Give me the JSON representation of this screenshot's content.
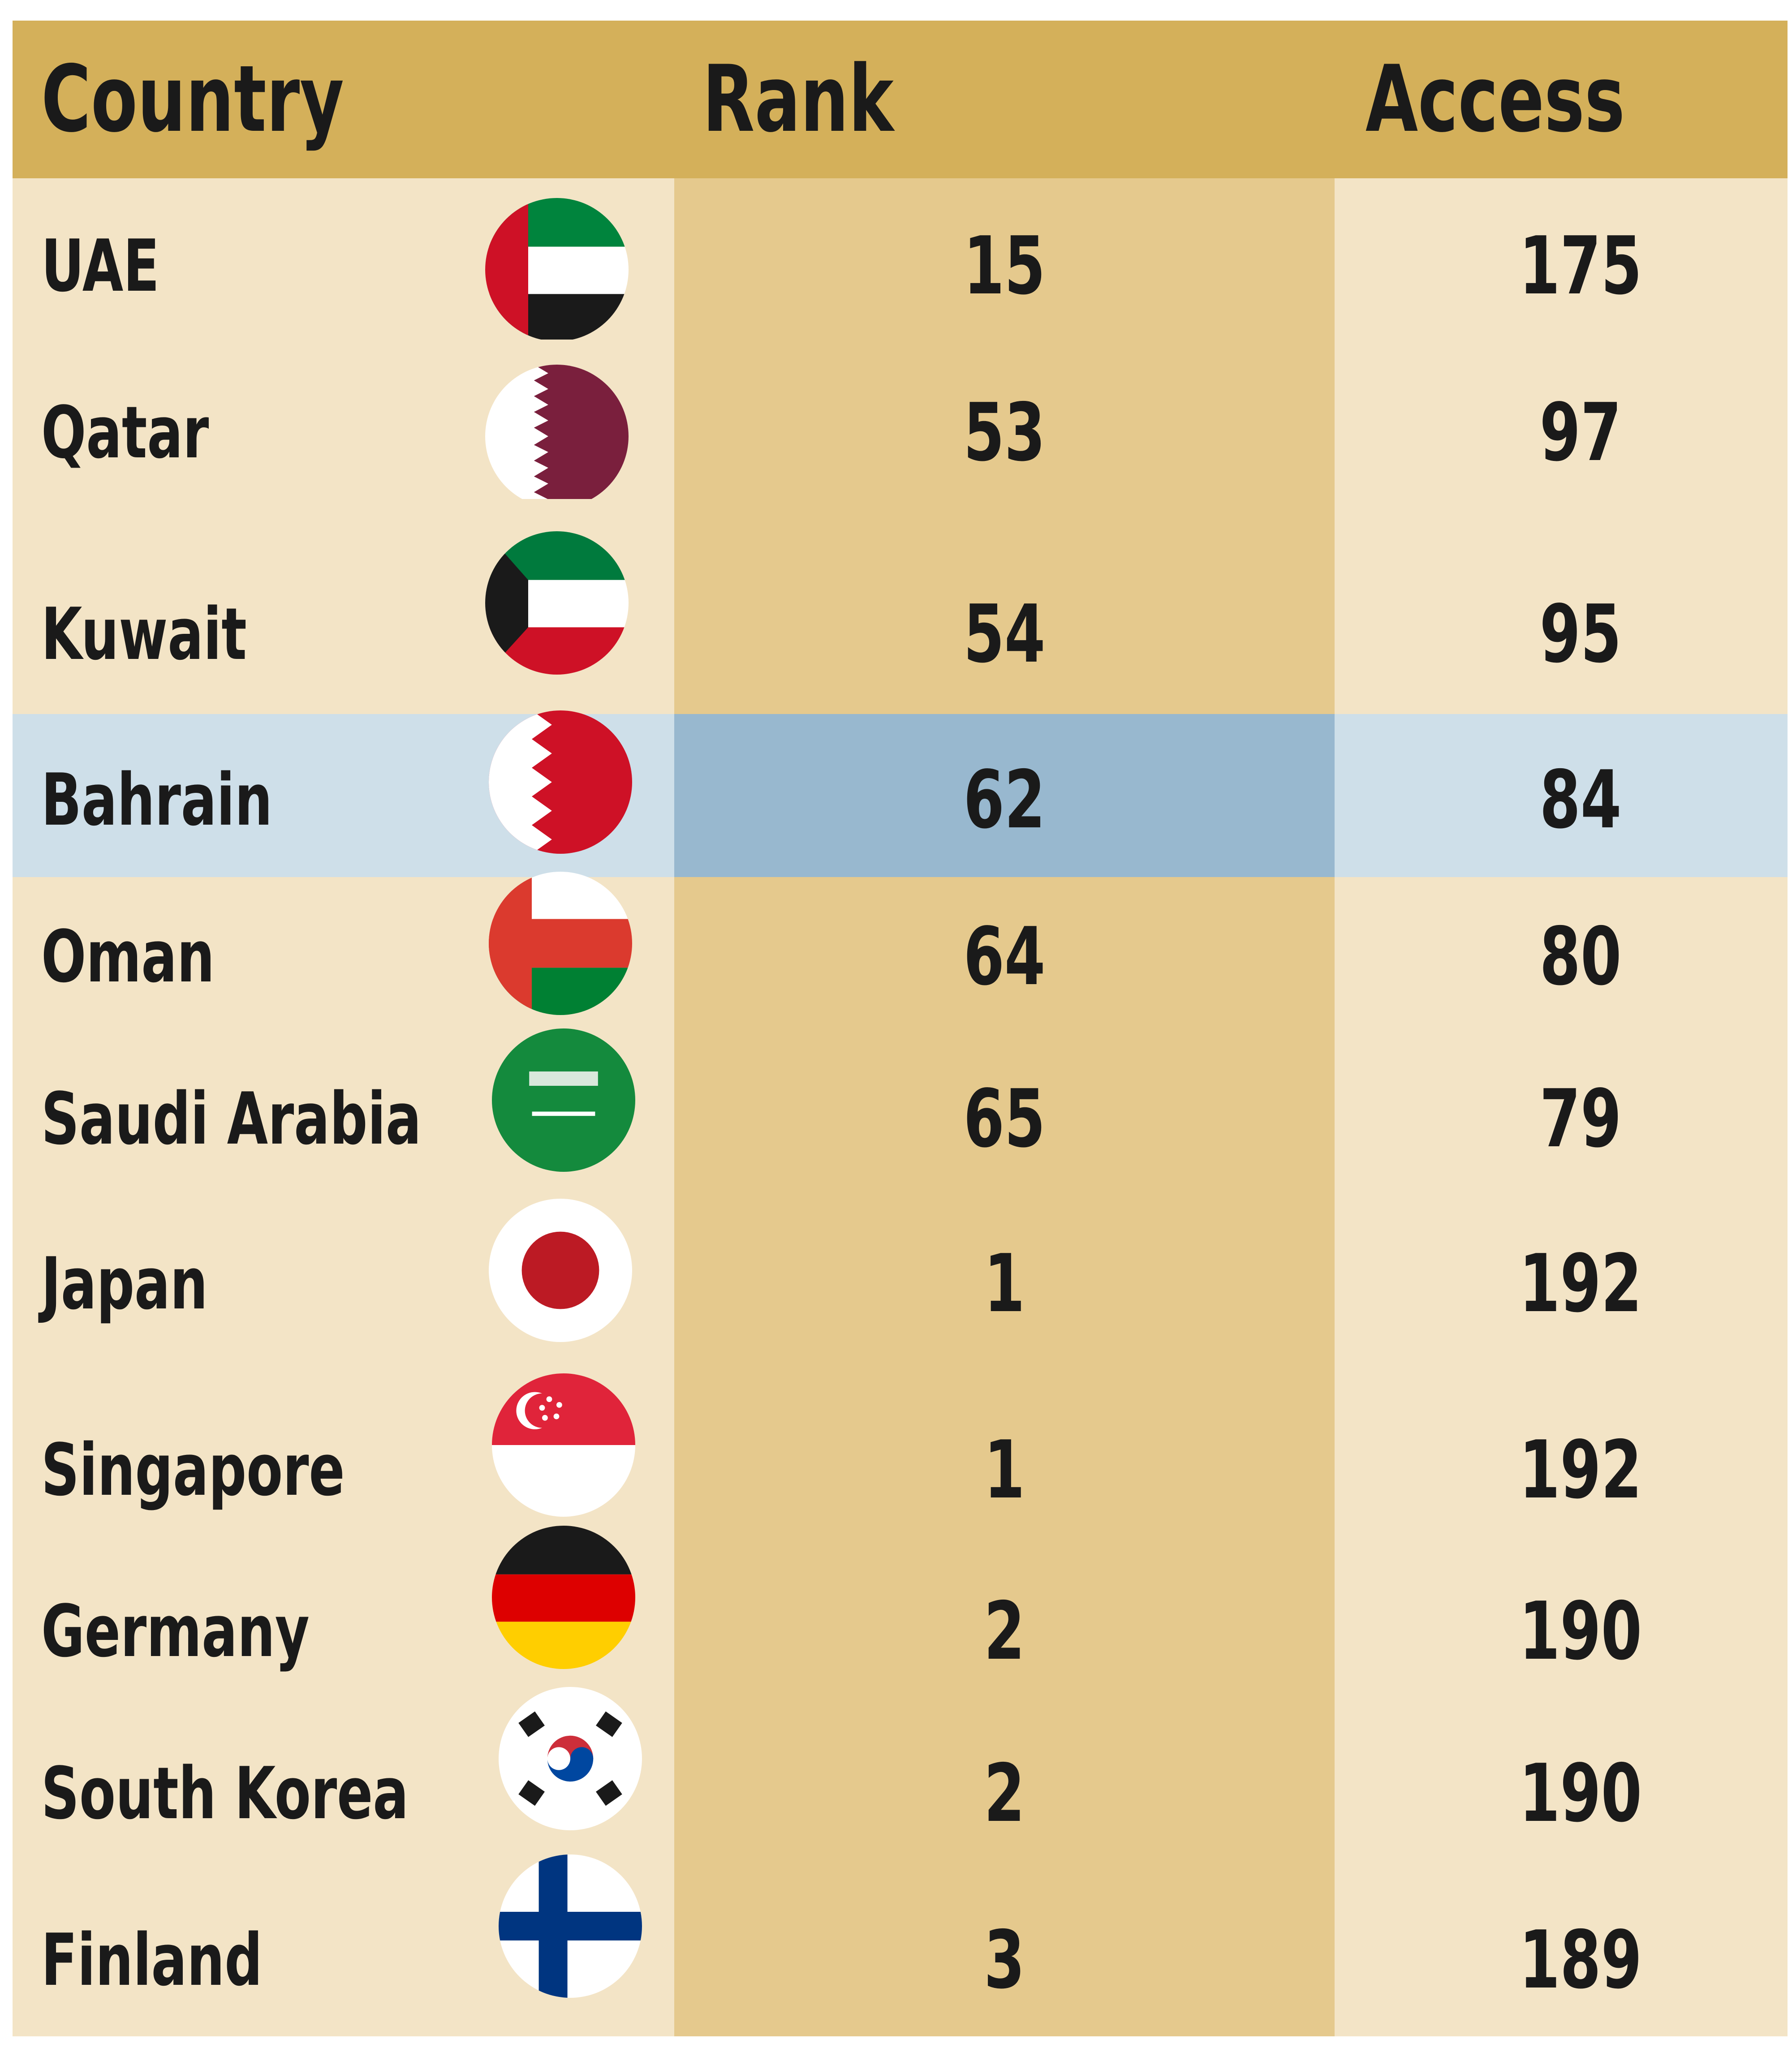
{
  "chart_data": {
    "type": "table",
    "columns": [
      "Country",
      "Rank",
      "Access"
    ],
    "highlight_row": "Bahrain",
    "rows": [
      {
        "country": "UAE",
        "rank": "15",
        "access": "175",
        "flag": "uae-flag-icon"
      },
      {
        "country": "Qatar",
        "rank": "53",
        "access": "97",
        "flag": "qatar-flag-icon"
      },
      {
        "country": "Kuwait",
        "rank": "54",
        "access": "95",
        "flag": "kuwait-flag-icon"
      },
      {
        "country": "Bahrain",
        "rank": "62",
        "access": "84",
        "flag": "bahrain-flag-icon"
      },
      {
        "country": "Oman",
        "rank": "64",
        "access": "80",
        "flag": "oman-flag-icon"
      },
      {
        "country": "Saudi Arabia",
        "rank": "65",
        "access": "79",
        "flag": "saudi-arabia-flag-icon"
      },
      {
        "country": "Japan",
        "rank": "1",
        "access": "192",
        "flag": "japan-flag-icon"
      },
      {
        "country": "Singapore",
        "rank": "1",
        "access": "192",
        "flag": "singapore-flag-icon"
      },
      {
        "country": "Germany",
        "rank": "2",
        "access": "190",
        "flag": "germany-flag-icon"
      },
      {
        "country": "South Korea",
        "rank": "2",
        "access": "190",
        "flag": "south-korea-flag-icon"
      },
      {
        "country": "Finland",
        "rank": "3",
        "access": "189",
        "flag": "finland-flag-icon"
      }
    ]
  },
  "colors": {
    "header_bg": "#D4B05A",
    "country_bg": "#F3E4C6",
    "rank_bg": "#E5C98D",
    "highlight_light": "#CEDFE9",
    "highlight_dark": "#98B8CF"
  }
}
